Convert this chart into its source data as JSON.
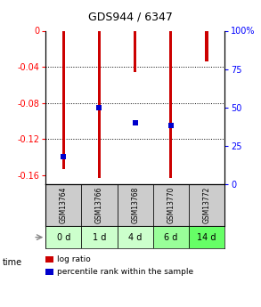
{
  "title": "GDS944 / 6347",
  "samples": [
    "GSM13764",
    "GSM13766",
    "GSM13768",
    "GSM13770",
    "GSM13772"
  ],
  "time_labels": [
    "0 d",
    "1 d",
    "4 d",
    "6 d",
    "14 d"
  ],
  "log_ratios": [
    -0.153,
    -0.163,
    -0.046,
    -0.163,
    -0.034
  ],
  "percentile_ranks": [
    18,
    50,
    40,
    38,
    null
  ],
  "ylim_left": [
    -0.17,
    0.0
  ],
  "ylim_right": [
    0,
    100
  ],
  "yticks_left": [
    0,
    -0.04,
    -0.08,
    -0.12,
    -0.16
  ],
  "yticks_right": [
    0,
    25,
    50,
    75,
    100
  ],
  "bar_color": "#cc0000",
  "percentile_color": "#0000cc",
  "bar_width": 0.08,
  "gsm_bg": "#cccccc",
  "time_bg_colors": [
    "#ccffcc",
    "#ccffcc",
    "#ccffcc",
    "#99ff99",
    "#66ff66"
  ],
  "legend_log_ratio": "log ratio",
  "legend_percentile": "percentile rank within the sample",
  "time_label": "time"
}
